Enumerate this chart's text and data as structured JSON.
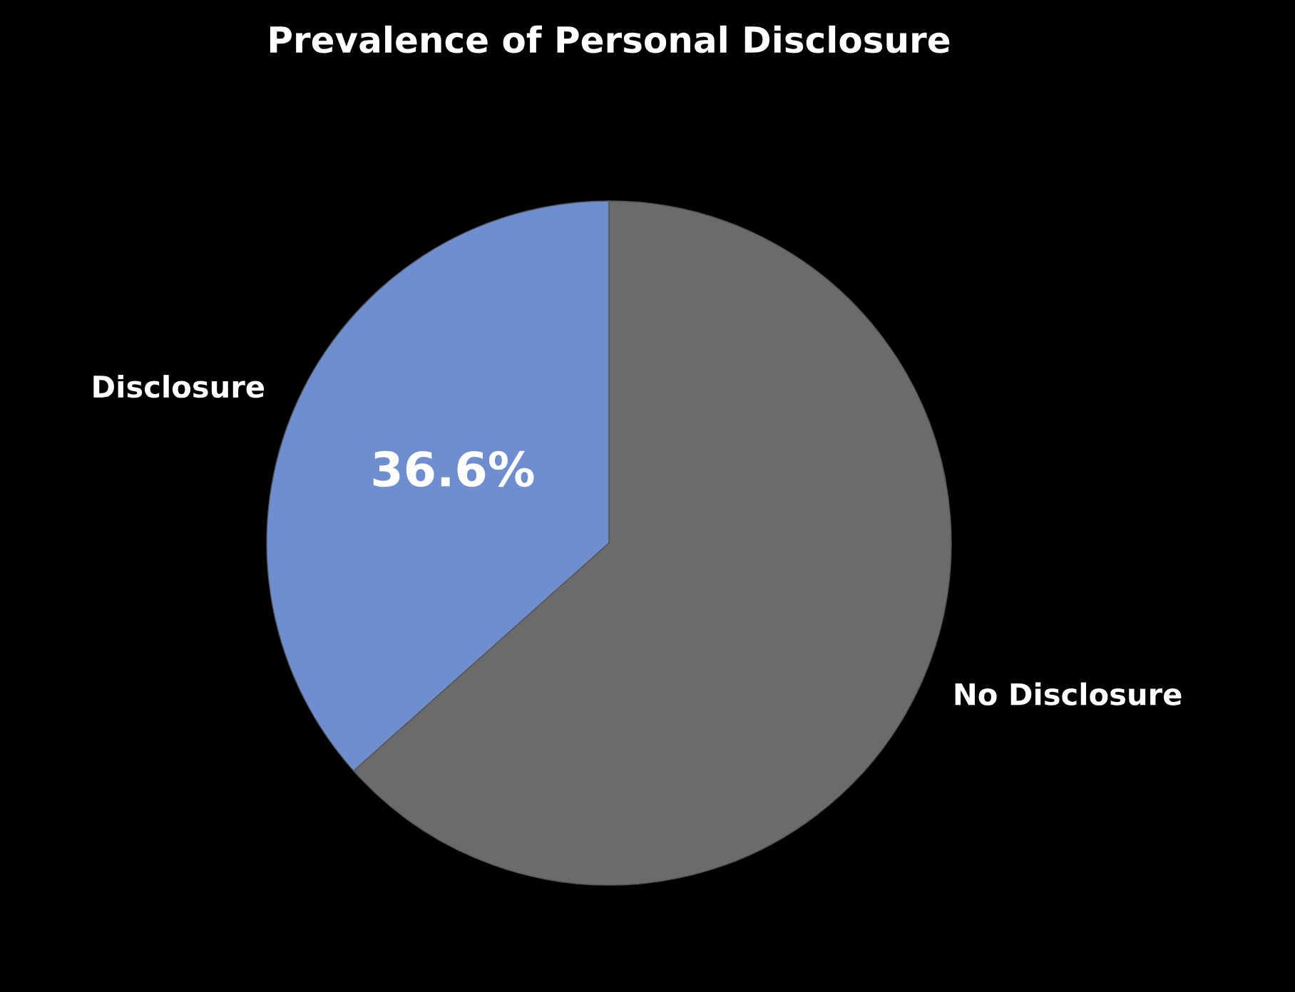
{
  "chart_data": {
    "type": "pie",
    "title": "Prevalence of Personal Disclosure",
    "categories": [
      "Disclosure",
      "No Disclosure"
    ],
    "values": [
      36.6,
      63.4
    ],
    "colors": [
      "#6f8ecf",
      "#6b6b6b"
    ],
    "value_labels": [
      "36.6%",
      null
    ]
  }
}
